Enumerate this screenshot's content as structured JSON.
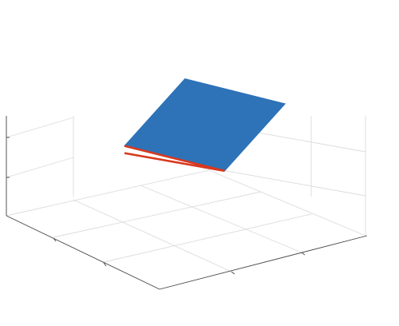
{
  "chart_data": {
    "type": "surface3d",
    "title": "",
    "xlabel": "",
    "ylabel": "",
    "zlabel": "",
    "grid": true,
    "tick_labels_visible": false,
    "series": [
      {
        "kind": "surface-plane",
        "color": "#2e73b8",
        "corners": [
          [
            0.15,
            0.75,
            0.9
          ],
          [
            0.6,
            0.9,
            0.9
          ],
          [
            0.95,
            0.35,
            0.8
          ],
          [
            0.5,
            0.2,
            0.8
          ]
        ]
      },
      {
        "kind": "line",
        "color": "#d9381e",
        "points": [
          [
            0.5,
            0.2,
            0.8
          ],
          [
            0.95,
            0.35,
            0.8
          ],
          [
            0.5,
            0.2,
            0.74
          ]
        ]
      }
    ]
  }
}
